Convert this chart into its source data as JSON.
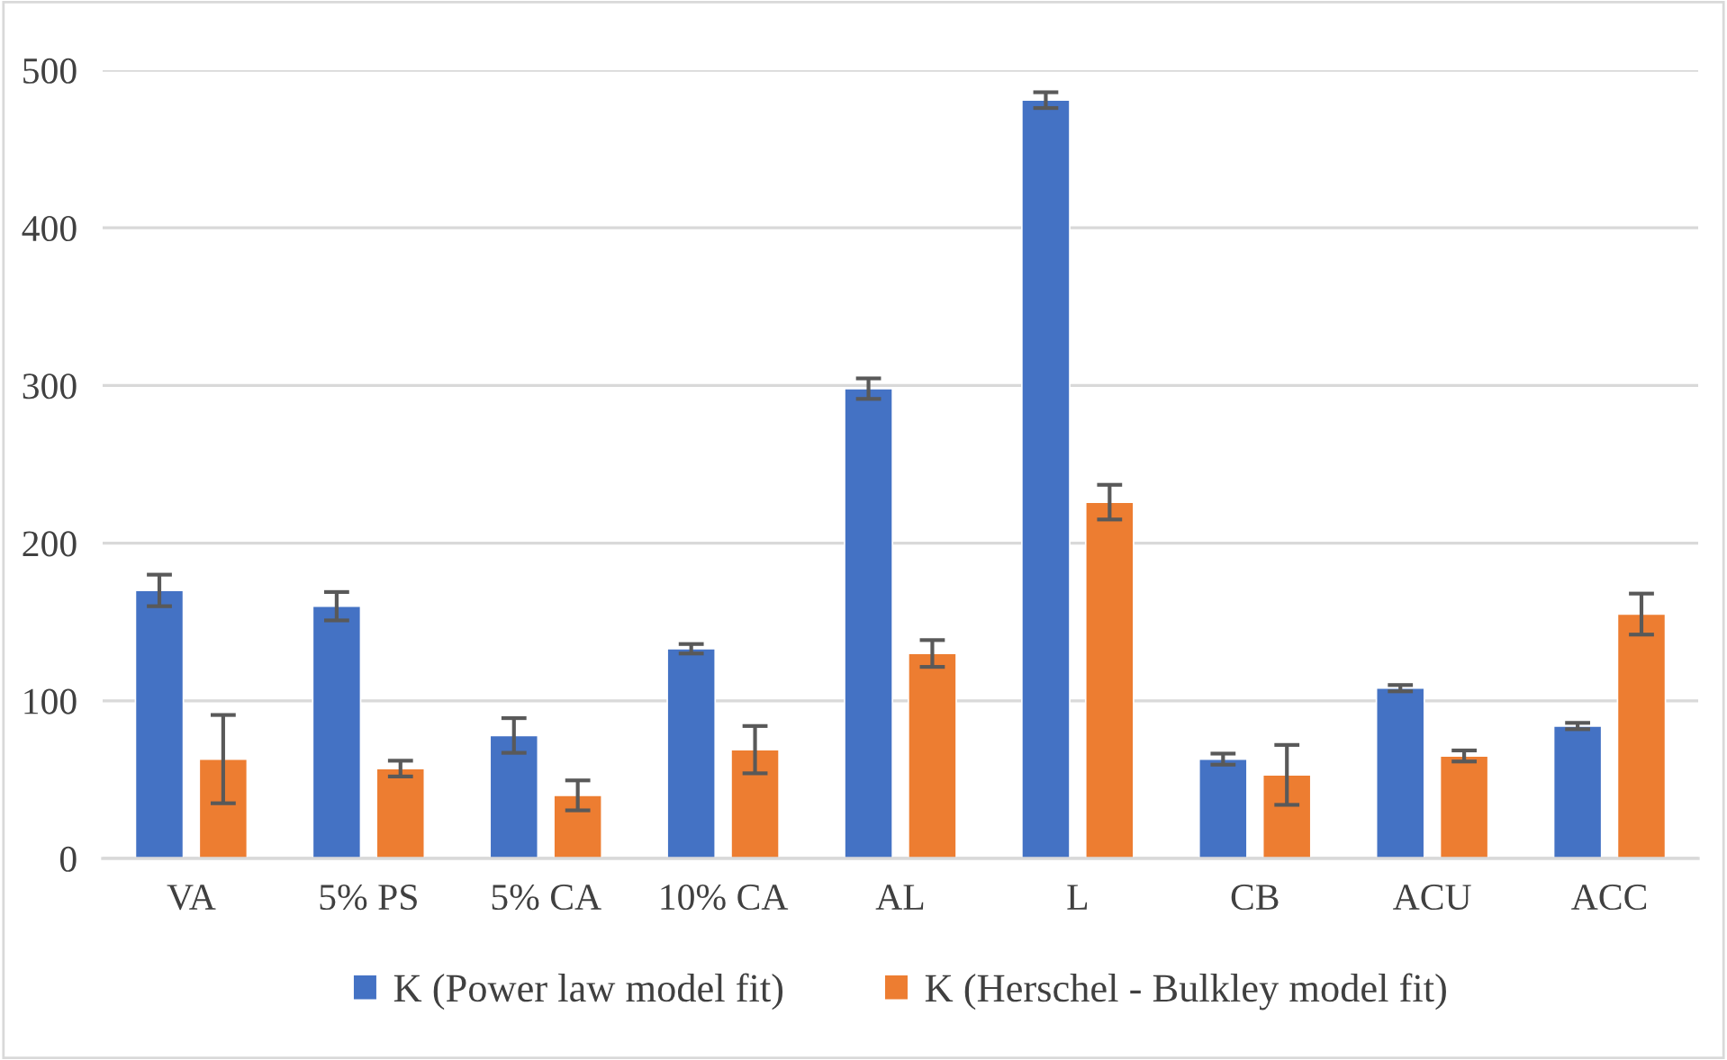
{
  "chart_data": {
    "type": "bar",
    "categories": [
      "VA",
      "5% PS",
      "5% CA",
      "10% CA",
      "AL",
      "L",
      "CB",
      "ACU",
      "ACC"
    ],
    "series": [
      {
        "name": "K (Power law model fit)",
        "color": "#4472c4",
        "values": [
          170,
          160,
          78,
          133,
          298,
          481,
          63,
          108,
          84
        ],
        "errors": [
          10,
          9,
          11,
          3,
          6.5,
          5,
          3.5,
          2,
          2
        ]
      },
      {
        "name": "K (Herschel - Bulkley model fit)",
        "color": "#ed7d31",
        "values": [
          63,
          57,
          40,
          69,
          130,
          226,
          53,
          65,
          155
        ],
        "errors": [
          28,
          5,
          9.5,
          15,
          8.5,
          11,
          19,
          3.5,
          13
        ]
      }
    ],
    "ylim": [
      0,
      500
    ],
    "yticks": [
      0,
      100,
      200,
      300,
      400,
      500
    ],
    "grid": "y",
    "legend": "bottom"
  }
}
